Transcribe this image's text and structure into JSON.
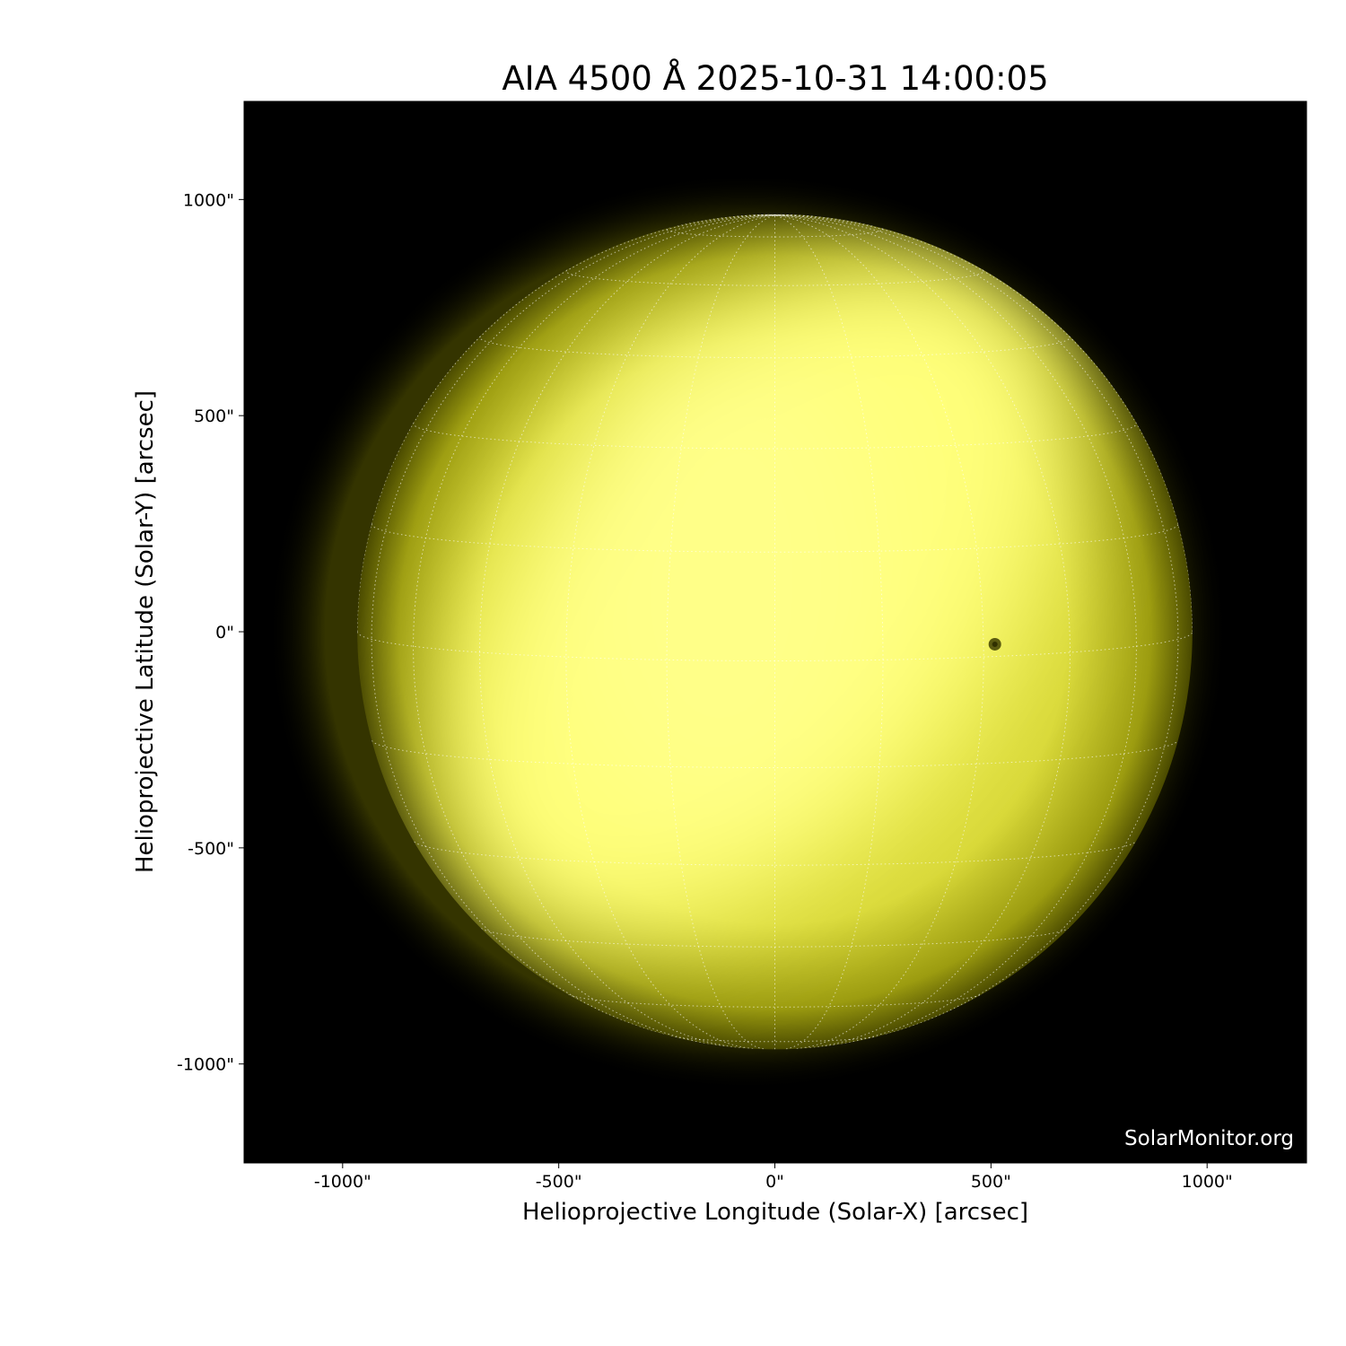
{
  "chart_data": {
    "type": "image",
    "title": "AIA 4500 Å 2025-10-31 14:00:05",
    "xlabel": "Helioprojective Longitude (Solar-X) [arcsec]",
    "ylabel": "Helioprojective Latitude (Solar-Y) [arcsec]",
    "xlim": [
      -1228,
      1230
    ],
    "ylim": [
      -1229,
      1227
    ],
    "xticks": [
      -1000,
      -500,
      0,
      500,
      1000
    ],
    "xtick_labels": [
      "-1000\"",
      "-500\"",
      "0\"",
      "500\"",
      "1000\""
    ],
    "yticks": [
      1000,
      500,
      0,
      -500,
      -1000
    ],
    "ytick_labels": [
      "1000\"",
      "500\"",
      "0\"",
      "-500\"",
      "-1000\""
    ],
    "solar_radius_arcsec": 966,
    "grid": "heliographic lat/lon every 15°, white dotted",
    "colormap": "yellow (black → #ffff80)",
    "features": [
      {
        "type": "sunspot",
        "x": 509,
        "y": -29
      }
    ],
    "background": "#000000"
  },
  "watermark": "SolarMonitor.org"
}
